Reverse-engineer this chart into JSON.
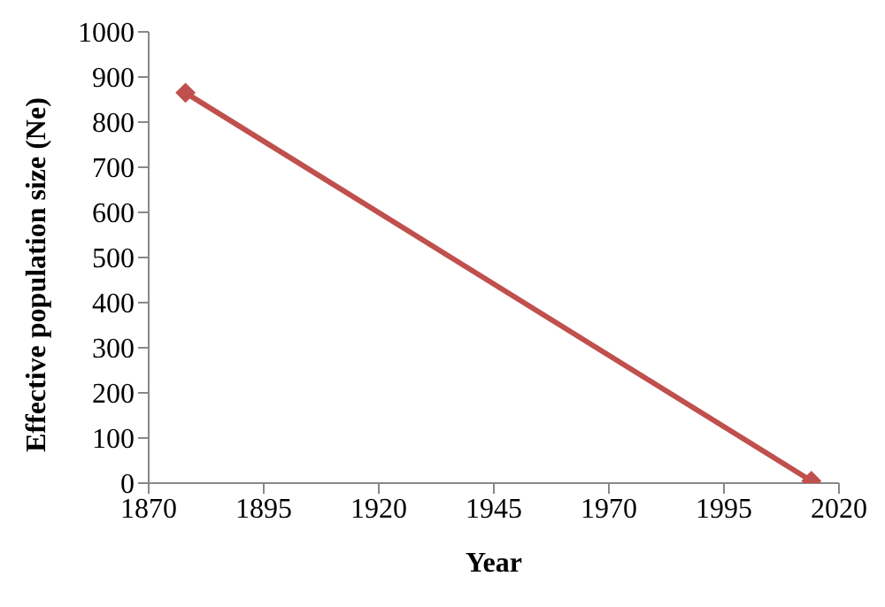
{
  "chart_data": {
    "type": "line",
    "xlabel": "Year",
    "ylabel": "Effective population size (Ne)",
    "x": [
      1878,
      2014
    ],
    "series": [
      {
        "color": "#c0504d",
        "values": [
          865,
          5
        ]
      }
    ],
    "xlim": [
      1870,
      2020
    ],
    "xticks": [
      1870,
      1895,
      1920,
      1945,
      1970,
      1995,
      2020
    ],
    "ylim": [
      0,
      1000
    ],
    "yticks": [
      0,
      100,
      200,
      300,
      400,
      500,
      600,
      700,
      800,
      900,
      1000
    ],
    "grid": false,
    "legend": false,
    "marker": "diamond",
    "line_style": "solid"
  }
}
